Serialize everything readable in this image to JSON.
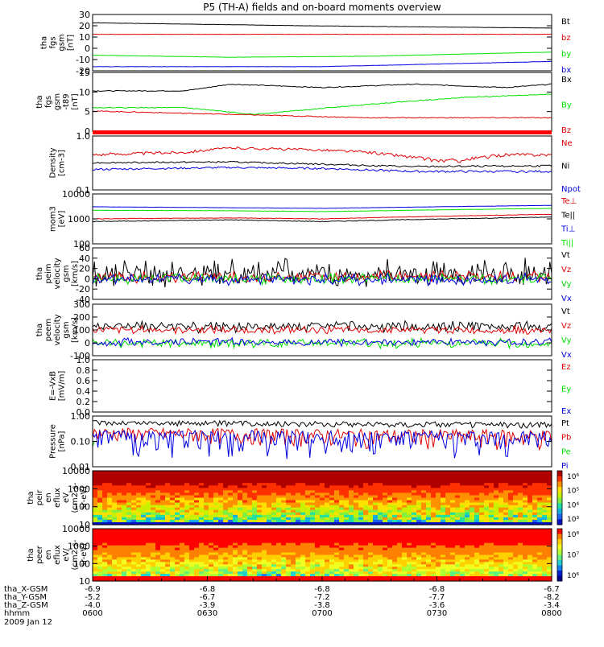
{
  "title": "P5 (TH-A) fields and on-board moments overview",
  "date": "2009 Jan 12",
  "colors": {
    "black": "#000000",
    "red": "#e00000",
    "green": "#00e000",
    "blue": "#0000e0"
  },
  "chart_data": [
    {
      "type": "line",
      "ylabel": [
        "tha",
        "fgs",
        "gsm",
        "[nT]"
      ],
      "yticks": [
        "30",
        "20",
        "10",
        "0",
        "-10",
        "-20"
      ],
      "ylim": [
        -22,
        32
      ],
      "legend": [
        {
          "name": "Bt",
          "color": "black"
        },
        {
          "name": "bz",
          "color": "red"
        },
        {
          "name": "by",
          "color": "green"
        },
        {
          "name": "bx",
          "color": "blue"
        }
      ],
      "series": [
        {
          "name": "Bt",
          "color": "black",
          "x": [
            0,
            0.5,
            1
          ],
          "y": [
            24,
            21,
            19
          ]
        },
        {
          "name": "bz",
          "color": "red",
          "x": [
            0,
            0.5,
            1
          ],
          "y": [
            13,
            13,
            13
          ]
        },
        {
          "name": "by",
          "color": "green",
          "x": [
            0,
            0.3,
            0.6,
            1
          ],
          "y": [
            -7,
            -9,
            -8,
            -4
          ]
        },
        {
          "name": "bx",
          "color": "blue",
          "x": [
            0,
            0.5,
            1
          ],
          "y": [
            -18,
            -18,
            -13
          ]
        }
      ]
    },
    {
      "type": "line",
      "ylabel": [
        "tha",
        "fgs",
        "gsm",
        "-t89",
        "[nT]"
      ],
      "yticks": [
        "15",
        "10",
        "5",
        "0"
      ],
      "ylim": [
        -2,
        15.5
      ],
      "legend": [
        {
          "name": "Bx",
          "color": "black"
        },
        {
          "name": "By",
          "color": "green"
        },
        {
          "name": "Bz",
          "color": "red"
        }
      ],
      "series": [
        {
          "name": "Bx",
          "color": "black",
          "x": [
            0,
            0.2,
            0.3,
            0.5,
            0.7,
            0.9,
            1
          ],
          "y": [
            10,
            10,
            12,
            11,
            12,
            11,
            12
          ]
        },
        {
          "name": "By",
          "color": "green",
          "x": [
            0,
            0.2,
            0.35,
            0.6,
            0.8,
            1
          ],
          "y": [
            5,
            5,
            3,
            6,
            8,
            9
          ]
        },
        {
          "name": "Bz",
          "color": "red",
          "x": [
            0,
            0.3,
            0.6,
            1
          ],
          "y": [
            4,
            3,
            2,
            2
          ]
        }
      ]
    },
    {
      "type": "line",
      "ylabel": [
        "Density",
        "[cm-3]"
      ],
      "yticks": [
        "1.0",
        "0.1"
      ],
      "ylim": [
        0.1,
        1.0
      ],
      "scale": "log",
      "legend": [
        {
          "name": "Ne",
          "color": "red"
        },
        {
          "name": "Ni",
          "color": "black"
        },
        {
          "name": "Npot",
          "color": "blue"
        }
      ],
      "series": [
        {
          "name": "Ne",
          "color": "red",
          "x": [
            0,
            0.2,
            0.3,
            0.5,
            0.6,
            0.7,
            0.75,
            0.8,
            0.9,
            1
          ],
          "y": [
            0.45,
            0.5,
            0.6,
            0.55,
            0.5,
            0.4,
            0.35,
            0.35,
            0.45,
            0.45
          ]
        },
        {
          "name": "Ni",
          "color": "black",
          "x": [
            0,
            0.3,
            0.5,
            0.7,
            1
          ],
          "y": [
            0.32,
            0.33,
            0.3,
            0.27,
            0.28
          ]
        },
        {
          "name": "Npot",
          "color": "blue",
          "x": [
            0,
            0.3,
            0.5,
            0.7,
            1
          ],
          "y": [
            0.24,
            0.26,
            0.25,
            0.22,
            0.22
          ]
        }
      ]
    },
    {
      "type": "line",
      "ylabel": [
        "mom3",
        "[eV]"
      ],
      "yticks": [
        "10000",
        "1000",
        "100"
      ],
      "ylim": [
        100,
        12000
      ],
      "scale": "log",
      "legend": [
        {
          "name": "Te⊥",
          "color": "red"
        },
        {
          "name": "Te||",
          "color": "black"
        },
        {
          "name": "Ti⊥",
          "color": "blue"
        },
        {
          "name": "Ti||",
          "color": "green"
        }
      ],
      "series": [
        {
          "name": "Te⊥",
          "color": "red",
          "x": [
            0,
            0.3,
            0.5,
            1
          ],
          "y": [
            1100,
            1200,
            1100,
            1700
          ]
        },
        {
          "name": "Te||",
          "color": "black",
          "x": [
            0,
            0.3,
            0.5,
            1
          ],
          "y": [
            850,
            1000,
            850,
            1300
          ]
        },
        {
          "name": "Ti⊥",
          "color": "blue",
          "x": [
            0,
            0.3,
            0.5,
            1
          ],
          "y": [
            3500,
            3200,
            3000,
            4000
          ]
        },
        {
          "name": "Ti||",
          "color": "green",
          "x": [
            0,
            0.3,
            0.5,
            1
          ],
          "y": [
            2500,
            2400,
            2200,
            3000
          ]
        }
      ]
    },
    {
      "type": "line",
      "ylabel": [
        "tha",
        "peim",
        "velocity",
        "gsm",
        "[km/s]"
      ],
      "yticks": [
        "60",
        "40",
        "20",
        "0",
        "-20",
        "-40"
      ],
      "ylim": [
        -42,
        62
      ],
      "legend": [
        {
          "name": "Vt",
          "color": "black"
        },
        {
          "name": "Vz",
          "color": "red"
        },
        {
          "name": "Vy",
          "color": "green"
        },
        {
          "name": "Vx",
          "color": "blue"
        }
      ],
      "series": [
        {
          "name": "Vt",
          "color": "black",
          "x": [
            0,
            1
          ],
          "y": [
            10,
            10
          ]
        },
        {
          "name": "Vz",
          "color": "red",
          "x": [
            0,
            1
          ],
          "y": [
            3,
            3
          ]
        },
        {
          "name": "Vy",
          "color": "green",
          "x": [
            0,
            1
          ],
          "y": [
            0,
            0
          ]
        },
        {
          "name": "Vx",
          "color": "blue",
          "x": [
            0,
            1
          ],
          "y": [
            -2,
            -2
          ]
        }
      ]
    },
    {
      "type": "line",
      "ylabel": [
        "tha",
        "peem",
        "velocity",
        "gsm",
        "[km/s]"
      ],
      "yticks": [
        "300",
        "200",
        "100",
        "0",
        "-100"
      ],
      "ylim": [
        -110,
        310
      ],
      "legend": [
        {
          "name": "Vt",
          "color": "black"
        },
        {
          "name": "Vz",
          "color": "red"
        },
        {
          "name": "Vy",
          "color": "green"
        },
        {
          "name": "Vx",
          "color": "blue"
        }
      ],
      "series": [
        {
          "name": "Vt",
          "color": "black",
          "x": [
            0,
            0.3,
            0.5,
            1
          ],
          "y": [
            130,
            120,
            130,
            125
          ]
        },
        {
          "name": "Vz",
          "color": "red",
          "x": [
            0,
            1
          ],
          "y": [
            100,
            100
          ]
        },
        {
          "name": "Vy",
          "color": "green",
          "x": [
            0,
            1
          ],
          "y": [
            -10,
            -10
          ]
        },
        {
          "name": "Vx",
          "color": "blue",
          "x": [
            0,
            1
          ],
          "y": [
            0,
            0
          ]
        }
      ]
    },
    {
      "type": "line",
      "ylabel": [
        "E=-VxB",
        "[mV/m]"
      ],
      "yticks": [
        "1.0",
        "0.8",
        "0.6",
        "0.4",
        "0.2",
        "0.0"
      ],
      "ylim": [
        0,
        1
      ],
      "legend": [
        {
          "name": "Ez",
          "color": "red"
        },
        {
          "name": "Ey",
          "color": "green"
        },
        {
          "name": "Ex",
          "color": "blue"
        }
      ],
      "series": []
    },
    {
      "type": "line",
      "ylabel": [
        "Pressure",
        "[nPa]"
      ],
      "yticks": [
        "1.00",
        "0.10",
        "0.01"
      ],
      "ylim": [
        0.01,
        1.0
      ],
      "scale": "log",
      "legend": [
        {
          "name": "Pt",
          "color": "black"
        },
        {
          "name": "Pb",
          "color": "red"
        },
        {
          "name": "Pe",
          "color": "green"
        },
        {
          "name": "Pi",
          "color": "blue"
        }
      ],
      "series": [
        {
          "name": "Pt",
          "color": "black",
          "x": [
            0,
            0.5,
            1
          ],
          "y": [
            0.55,
            0.5,
            0.45
          ]
        },
        {
          "name": "Pb",
          "color": "red",
          "x": [
            0,
            0.5,
            1
          ],
          "y": [
            0.22,
            0.18,
            0.16
          ]
        },
        {
          "name": "Pe",
          "color": "green",
          "x": [
            0,
            0.3,
            0.5,
            1
          ],
          "y": [
            0.07,
            0.06,
            0.055,
            0.06
          ]
        },
        {
          "name": "Pi",
          "color": "blue",
          "x": [
            0,
            0.5,
            1
          ],
          "y": [
            0.15,
            0.14,
            0.13
          ]
        }
      ]
    },
    {
      "type": "heatmap",
      "ylabel": [
        "tha",
        "peir",
        "en",
        "eflux",
        "eV",
        "(cm2-s-",
        "sr-eV)"
      ],
      "yticks": [
        "10000",
        "1000",
        "100",
        "10"
      ],
      "colorbar": {
        "labels": [
          "10⁶",
          "10⁵",
          "10⁴",
          "10³"
        ]
      }
    },
    {
      "type": "heatmap",
      "ylabel": [
        "tha",
        "peer",
        "en",
        "eflux",
        "eV/",
        "(cm2-s-",
        "sr-eV)"
      ],
      "yticks": [
        "10000",
        "1000",
        "100",
        "10"
      ],
      "colorbar": {
        "labels": [
          "10⁸",
          "10⁷",
          "10⁶"
        ]
      }
    }
  ],
  "x_axis": {
    "rows": [
      {
        "label": "tha_X-GSM",
        "values": [
          "-6.9",
          "-6.8",
          "-6.8",
          "-6.8",
          "-6.7"
        ]
      },
      {
        "label": "tha_Y-GSM",
        "values": [
          "-5.2",
          "-6.7",
          "-7.2",
          "-7.7",
          "-8.2"
        ]
      },
      {
        "label": "tha_Z-GSM",
        "values": [
          "-4.0",
          "-3.9",
          "-3.8",
          "-3.6",
          "-3.4"
        ]
      },
      {
        "label": "hhmm",
        "values": [
          "0600",
          "0630",
          "0700",
          "0730",
          "0800"
        ]
      }
    ]
  }
}
